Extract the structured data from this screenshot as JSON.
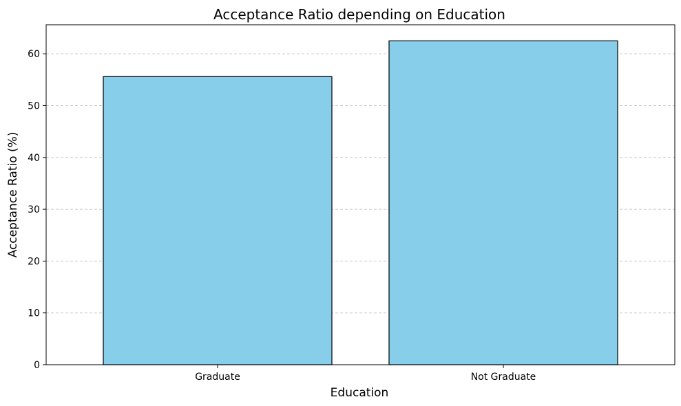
{
  "chart_data": {
    "type": "bar",
    "title": "Acceptance Ratio depending on Education",
    "xlabel": "Education",
    "ylabel": "Acceptance Ratio (%)",
    "categories": [
      "Graduate",
      "Not Graduate"
    ],
    "values": [
      55.6,
      62.5
    ],
    "ylim": [
      0,
      65.6
    ],
    "yticks": [
      0,
      10,
      20,
      30,
      40,
      50,
      60
    ],
    "grid": "y-dashed",
    "bar_color": "#87CEEB",
    "edge_color": "#000000",
    "grid_color": "#c8c8c8"
  }
}
